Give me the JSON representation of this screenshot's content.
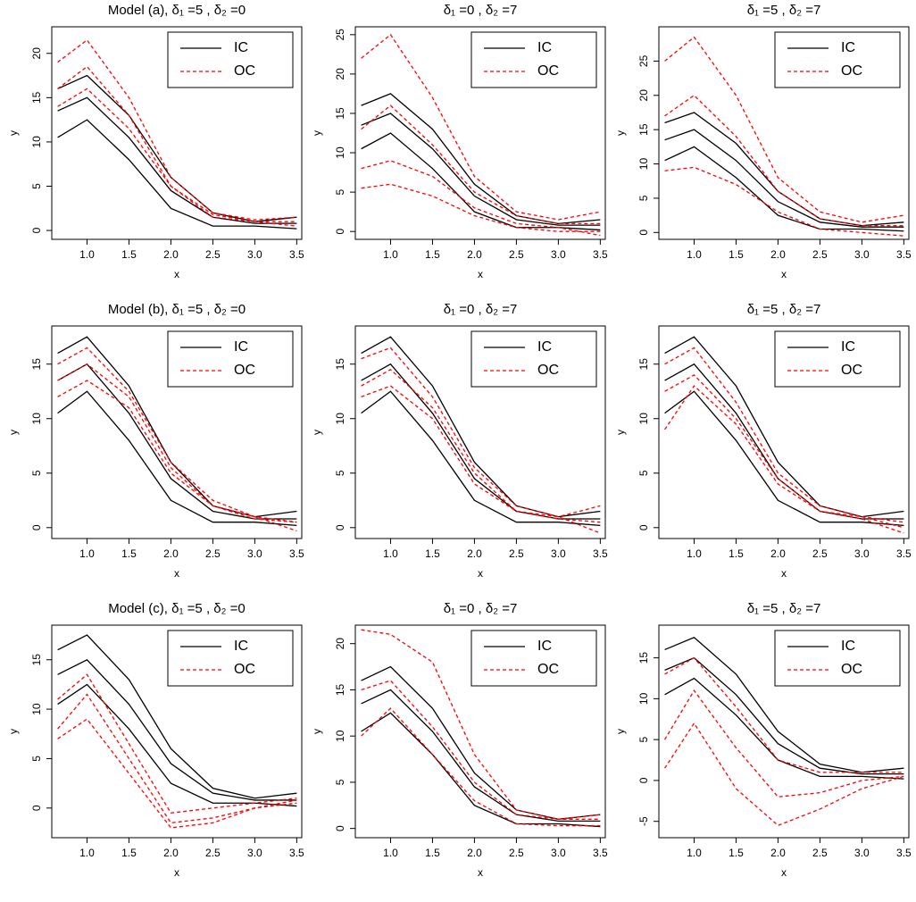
{
  "chart_data": [
    {
      "type": "line",
      "title": "Model (a),  δ₁ =5 ,  δ₂ =0",
      "xlabel": "x",
      "ylabel": "y",
      "legend": "top-right",
      "x": [
        0.65,
        1.0,
        1.5,
        2.0,
        2.5,
        3.0,
        3.5
      ],
      "xlim": [
        0.58,
        3.56
      ],
      "xticks": [
        {
          "value": 1,
          "label": "1.0"
        },
        {
          "value": 1.5,
          "label": "1.5"
        },
        {
          "value": 2,
          "label": "2.0"
        },
        {
          "value": 2.5,
          "label": "2.5"
        },
        {
          "value": 3,
          "label": "3.0"
        },
        {
          "value": 3.5,
          "label": "3.5"
        }
      ],
      "ylim": [
        -1,
        23
      ],
      "yticks": [
        0,
        5,
        10,
        15,
        20
      ],
      "series": [
        {
          "name": "IC",
          "color": "#000000",
          "dash": "solid",
          "curves": [
            [
              16,
              17.5,
              13,
              6,
              2,
              1,
              1.5
            ],
            [
              13.5,
              15,
              10.5,
              4.5,
              1.5,
              0.8,
              0.8
            ],
            [
              10.5,
              12.5,
              8,
              2.5,
              0.5,
              0.5,
              0.2
            ]
          ]
        },
        {
          "name": "OC",
          "color": "#ff0000",
          "dash": "dashed",
          "curves": [
            [
              19,
              21.5,
              15,
              6,
              2,
              1.2,
              1.5
            ],
            [
              16,
              18.5,
              13,
              5,
              1.8,
              1,
              1
            ],
            [
              14,
              16,
              11.5,
              5,
              1.5,
              1,
              0.5
            ]
          ]
        }
      ]
    },
    {
      "type": "line",
      "title": "δ₁ =0 ,  δ₂ =7",
      "xlabel": "x",
      "ylabel": "y",
      "legend": "top-right",
      "x": [
        0.65,
        1.0,
        1.5,
        2.0,
        2.5,
        3.0,
        3.5
      ],
      "xlim": [
        0.58,
        3.56
      ],
      "xticks": [
        {
          "value": 1,
          "label": "1.0"
        },
        {
          "value": 1.5,
          "label": "1.5"
        },
        {
          "value": 2,
          "label": "2.0"
        },
        {
          "value": 2.5,
          "label": "2.5"
        },
        {
          "value": 3,
          "label": "3.0"
        },
        {
          "value": 3.5,
          "label": "3.5"
        }
      ],
      "ylim": [
        -1,
        26
      ],
      "yticks": [
        0,
        5,
        10,
        15,
        20,
        25
      ],
      "series": [
        {
          "name": "IC",
          "color": "#000000",
          "dash": "solid",
          "curves": [
            [
              16,
              17.5,
              13,
              6,
              2,
              1,
              1.5
            ],
            [
              13.5,
              15,
              10.5,
              4.5,
              1.5,
              0.8,
              0.8
            ],
            [
              10.5,
              12.5,
              8,
              2.5,
              0.5,
              0.5,
              0.2
            ]
          ]
        },
        {
          "name": "OC",
          "color": "#ff0000",
          "dash": "dashed",
          "curves": [
            [
              22,
              25,
              17,
              7,
              2.5,
              1.5,
              2.5
            ],
            [
              13,
              16,
              11,
              5,
              2,
              1,
              1
            ],
            [
              8,
              9,
              7,
              3,
              1,
              0.5,
              -0.5
            ],
            [
              5.5,
              6,
              4.5,
              2,
              0.5,
              0,
              0
            ]
          ]
        }
      ]
    },
    {
      "type": "line",
      "title": "δ₁ =5 ,  δ₂ =7",
      "xlabel": "x",
      "ylabel": "y",
      "legend": "top-right",
      "x": [
        0.65,
        1.0,
        1.5,
        2.0,
        2.5,
        3.0,
        3.5
      ],
      "xlim": [
        0.58,
        3.56
      ],
      "xticks": [
        {
          "value": 1,
          "label": "1.0"
        },
        {
          "value": 1.5,
          "label": "1.5"
        },
        {
          "value": 2,
          "label": "2.0"
        },
        {
          "value": 2.5,
          "label": "2.5"
        },
        {
          "value": 3,
          "label": "3.0"
        },
        {
          "value": 3.5,
          "label": "3.5"
        }
      ],
      "ylim": [
        -1,
        30
      ],
      "yticks": [
        0,
        5,
        10,
        15,
        20,
        25
      ],
      "series": [
        {
          "name": "IC",
          "color": "#000000",
          "dash": "solid",
          "curves": [
            [
              16,
              17.5,
              13,
              6,
              2,
              1,
              1.5
            ],
            [
              13.5,
              15,
              10.5,
              4.5,
              1.5,
              0.8,
              0.8
            ],
            [
              10.5,
              12.5,
              8,
              2.5,
              0.5,
              0.5,
              0.2
            ]
          ]
        },
        {
          "name": "OC",
          "color": "#ff0000",
          "dash": "dashed",
          "curves": [
            [
              25,
              28.5,
              20,
              8,
              3,
              1.5,
              2.5
            ],
            [
              17,
              20,
              14,
              6,
              2,
              1,
              1
            ],
            [
              9,
              9.5,
              7,
              3,
              0.5,
              0,
              -0.5
            ]
          ]
        }
      ]
    },
    {
      "type": "line",
      "title": "Model (b),  δ₁ =5 ,  δ₂ =0",
      "xlabel": "x",
      "ylabel": "y",
      "legend": "top-right",
      "x": [
        0.65,
        1.0,
        1.5,
        2.0,
        2.5,
        3.0,
        3.5
      ],
      "xlim": [
        0.58,
        3.56
      ],
      "xticks": [
        {
          "value": 1,
          "label": "1.0"
        },
        {
          "value": 1.5,
          "label": "1.5"
        },
        {
          "value": 2,
          "label": "2.0"
        },
        {
          "value": 2.5,
          "label": "2.5"
        },
        {
          "value": 3,
          "label": "3.0"
        },
        {
          "value": 3.5,
          "label": "3.5"
        }
      ],
      "ylim": [
        -1,
        18.5
      ],
      "yticks": [
        0,
        5,
        10,
        15
      ],
      "series": [
        {
          "name": "IC",
          "color": "#000000",
          "dash": "solid",
          "curves": [
            [
              16,
              17.5,
              13,
              6,
              2,
              1,
              1.5
            ],
            [
              13.5,
              15,
              10.5,
              4.5,
              1.5,
              0.8,
              0.8
            ],
            [
              10.5,
              12.5,
              8,
              2.5,
              0.5,
              0.5,
              0.2
            ]
          ]
        },
        {
          "name": "OC",
          "color": "#ff0000",
          "dash": "dashed",
          "curves": [
            [
              15,
              16.5,
              12.5,
              6,
              2.5,
              1,
              0.5
            ],
            [
              12,
              13.5,
              11,
              5,
              2,
              0.8,
              0.5
            ],
            [
              13.5,
              15,
              12,
              5.5,
              2,
              1,
              -0.3
            ]
          ]
        }
      ]
    },
    {
      "type": "line",
      "title": "δ₁ =0 ,  δ₂ =7",
      "xlabel": "x",
      "ylabel": "y",
      "legend": "top-right",
      "x": [
        0.65,
        1.0,
        1.5,
        2.0,
        2.5,
        3.0,
        3.5
      ],
      "xlim": [
        0.58,
        3.56
      ],
      "xticks": [
        {
          "value": 1,
          "label": "1.0"
        },
        {
          "value": 1.5,
          "label": "1.5"
        },
        {
          "value": 2,
          "label": "2.0"
        },
        {
          "value": 2.5,
          "label": "2.5"
        },
        {
          "value": 3,
          "label": "3.0"
        },
        {
          "value": 3.5,
          "label": "3.5"
        }
      ],
      "ylim": [
        -1,
        18.5
      ],
      "yticks": [
        0,
        5,
        10,
        15
      ],
      "series": [
        {
          "name": "IC",
          "color": "#000000",
          "dash": "solid",
          "curves": [
            [
              16,
              17.5,
              13,
              6,
              2,
              1,
              1.5
            ],
            [
              13.5,
              15,
              10.5,
              4.5,
              1.5,
              0.8,
              0.8
            ],
            [
              10.5,
              12.5,
              8,
              2.5,
              0.5,
              0.5,
              0.2
            ]
          ]
        },
        {
          "name": "OC",
          "color": "#ff0000",
          "dash": "dashed",
          "curves": [
            [
              15.5,
              16.5,
              12,
              5.5,
              2,
              1,
              2
            ],
            [
              13,
              14.5,
              11,
              5,
              1.5,
              0.8,
              0.5
            ],
            [
              12,
              13,
              10,
              4,
              1.5,
              1,
              -0.5
            ]
          ]
        }
      ]
    },
    {
      "type": "line",
      "title": "δ₁ =5 ,  δ₂ =7",
      "xlabel": "x",
      "ylabel": "y",
      "legend": "top-right",
      "x": [
        0.65,
        1.0,
        1.5,
        2.0,
        2.5,
        3.0,
        3.5
      ],
      "xlim": [
        0.58,
        3.56
      ],
      "xticks": [
        {
          "value": 1,
          "label": "1.0"
        },
        {
          "value": 1.5,
          "label": "1.5"
        },
        {
          "value": 2,
          "label": "2.0"
        },
        {
          "value": 2.5,
          "label": "2.5"
        },
        {
          "value": 3,
          "label": "3.0"
        },
        {
          "value": 3.5,
          "label": "3.5"
        }
      ],
      "ylim": [
        -1,
        18.5
      ],
      "yticks": [
        0,
        5,
        10,
        15
      ],
      "series": [
        {
          "name": "IC",
          "color": "#000000",
          "dash": "solid",
          "curves": [
            [
              16,
              17.5,
              13,
              6,
              2,
              1,
              1.5
            ],
            [
              13.5,
              15,
              10.5,
              4.5,
              1.5,
              0.8,
              0.8
            ],
            [
              10.5,
              12.5,
              8,
              2.5,
              0.5,
              0.5,
              0.2
            ]
          ]
        },
        {
          "name": "OC",
          "color": "#ff0000",
          "dash": "dashed",
          "curves": [
            [
              15,
              16.5,
              11.5,
              5,
              2,
              1,
              0.5
            ],
            [
              12.5,
              14,
              10,
              4.5,
              1.5,
              1,
              0
            ],
            [
              9,
              13,
              9.5,
              4,
              1.5,
              0.8,
              -0.5
            ]
          ]
        }
      ]
    },
    {
      "type": "line",
      "title": "Model (c),  δ₁ =5 ,  δ₂ =0",
      "xlabel": "x",
      "ylabel": "y",
      "legend": "top-right",
      "x": [
        0.65,
        1.0,
        1.5,
        2.0,
        2.5,
        3.0,
        3.5
      ],
      "xlim": [
        0.58,
        3.56
      ],
      "xticks": [
        {
          "value": 1,
          "label": "1.0"
        },
        {
          "value": 1.5,
          "label": "1.5"
        },
        {
          "value": 2,
          "label": "2.0"
        },
        {
          "value": 2.5,
          "label": "2.5"
        },
        {
          "value": 3,
          "label": "3.0"
        },
        {
          "value": 3.5,
          "label": "3.5"
        }
      ],
      "ylim": [
        -3,
        18.5
      ],
      "yticks": [
        0,
        5,
        10,
        15
      ],
      "series": [
        {
          "name": "IC",
          "color": "#000000",
          "dash": "solid",
          "curves": [
            [
              16,
              17.5,
              13,
              6,
              2,
              1,
              1.5
            ],
            [
              13.5,
              15,
              10.5,
              4.5,
              1.5,
              0.8,
              0.8
            ],
            [
              10.5,
              12.5,
              8,
              2.5,
              0.5,
              0.5,
              0.2
            ]
          ]
        },
        {
          "name": "OC",
          "color": "#ff0000",
          "dash": "dashed",
          "curves": [
            [
              11,
              13.5,
              6.5,
              -0.5,
              0,
              0.5,
              1
            ],
            [
              8,
              11.5,
              5,
              -1.5,
              -1,
              0,
              0.8
            ],
            [
              7,
              9,
              3.5,
              -2,
              -1.5,
              0,
              0.5
            ]
          ]
        }
      ]
    },
    {
      "type": "line",
      "title": "δ₁ =0 ,  δ₂ =7",
      "xlabel": "x",
      "ylabel": "y",
      "legend": "top-right",
      "x": [
        0.65,
        1.0,
        1.5,
        2.0,
        2.5,
        3.0,
        3.5
      ],
      "xlim": [
        0.58,
        3.56
      ],
      "xticks": [
        {
          "value": 1,
          "label": "1.0"
        },
        {
          "value": 1.5,
          "label": "1.5"
        },
        {
          "value": 2,
          "label": "2.0"
        },
        {
          "value": 2.5,
          "label": "2.5"
        },
        {
          "value": 3,
          "label": "3.0"
        },
        {
          "value": 3.5,
          "label": "3.5"
        }
      ],
      "ylim": [
        -1,
        22
      ],
      "yticks": [
        0,
        5,
        10,
        15,
        20
      ],
      "series": [
        {
          "name": "IC",
          "color": "#000000",
          "dash": "solid",
          "curves": [
            [
              16,
              17.5,
              13,
              6,
              2,
              1,
              1.5
            ],
            [
              13.5,
              15,
              10.5,
              4.5,
              1.5,
              0.8,
              0.8
            ],
            [
              10.5,
              12.5,
              8,
              2.5,
              0.5,
              0.5,
              0.2
            ]
          ]
        },
        {
          "name": "OC",
          "color": "#ff0000",
          "dash": "dashed",
          "curves": [
            [
              21.5,
              21,
              18,
              8,
              2,
              1,
              1.5
            ],
            [
              15,
              16,
              11,
              5,
              1.5,
              1,
              1
            ],
            [
              10,
              13,
              8,
              3,
              0.5,
              0.3,
              0.3
            ]
          ]
        }
      ]
    },
    {
      "type": "line",
      "title": "δ₁ =5 ,  δ₂ =7",
      "xlabel": "x",
      "ylabel": "y",
      "legend": "top-right",
      "x": [
        0.65,
        1.0,
        1.5,
        2.0,
        2.5,
        3.0,
        3.5
      ],
      "xlim": [
        0.58,
        3.56
      ],
      "xticks": [
        {
          "value": 1,
          "label": "1.0"
        },
        {
          "value": 1.5,
          "label": "1.5"
        },
        {
          "value": 2,
          "label": "2.0"
        },
        {
          "value": 2.5,
          "label": "2.5"
        },
        {
          "value": 3,
          "label": "3.0"
        },
        {
          "value": 3.5,
          "label": "3.5"
        }
      ],
      "ylim": [
        -7,
        19
      ],
      "yticks": [
        -5,
        0,
        5,
        10,
        15
      ],
      "series": [
        {
          "name": "IC",
          "color": "#000000",
          "dash": "solid",
          "curves": [
            [
              16,
              17.5,
              13,
              6,
              2,
              1,
              1.5
            ],
            [
              13.5,
              15,
              10.5,
              4.5,
              1.5,
              0.8,
              0.8
            ],
            [
              10.5,
              12.5,
              8,
              2.5,
              0.5,
              0.5,
              0.2
            ]
          ]
        },
        {
          "name": "OC",
          "color": "#ff0000",
          "dash": "dashed",
          "curves": [
            [
              13,
              15,
              9,
              2.5,
              1,
              1,
              1
            ],
            [
              5,
              11,
              4,
              -2,
              -1.5,
              0,
              0.5
            ],
            [
              1.5,
              7,
              -1,
              -5.5,
              -3.5,
              -1,
              0.5
            ]
          ]
        }
      ]
    }
  ]
}
